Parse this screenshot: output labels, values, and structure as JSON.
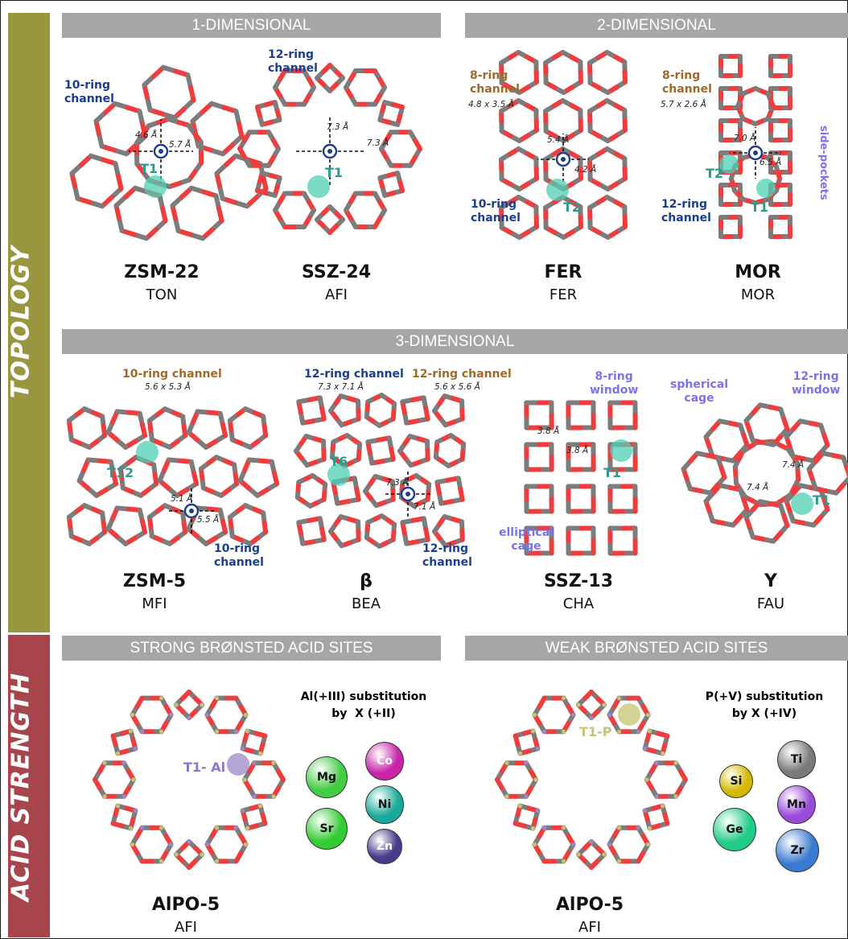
{
  "sidebar": {
    "topology": "TOPOLOGY",
    "acid_strength": "ACID STRENGTH"
  },
  "headers": {
    "one_d": "1-DIMENSIONAL",
    "two_d": "2-DIMENSIONAL",
    "three_d": "3-DIMENSIONAL",
    "strong": "STRONG BRØNSTED ACID SITES",
    "weak": "WEAK BRØNSTED ACID SITES"
  },
  "zeolites": {
    "zsm22": {
      "name": "ZSM-22",
      "code": "TON",
      "label": "10-ring\nchannel",
      "dim_a": "4.6 Å",
      "dim_b": "5.7 Å",
      "site": "T1"
    },
    "ssz24": {
      "name": "SSZ-24",
      "code": "AFI",
      "label": "12-ring\nchannel",
      "dim_a": "7.3 Å",
      "dim_b": "7.3 Å",
      "site": "T1"
    },
    "fer": {
      "name": "FER",
      "code": "FER",
      "label_8": "8-ring\nchannel",
      "dim_8": "4.8 x 3.5 Å",
      "label_10": "10-ring\nchannel",
      "dim_a": "5.4 Å",
      "dim_b": "4.2 Å",
      "site": "T2"
    },
    "mor": {
      "name": "MOR",
      "code": "MOR",
      "label_8": "8-ring\nchannel",
      "dim_8": "5.7 x 2.6 Å",
      "label_12": "12-ring\nchannel",
      "dim_a": "7.0 Å",
      "dim_b": "6.5 Å",
      "side": "side-pockets",
      "site_1": "T1",
      "site_2": "T2"
    },
    "zsm5": {
      "name": "ZSM-5",
      "code": "MFI",
      "label_top": "10-ring channel",
      "dim_top": "5.6 x 5.3 Å",
      "label_bot": "10-ring\nchannel",
      "dim_a": "5.1 Å",
      "dim_b": "5.5 Å",
      "site": "T12"
    },
    "beta": {
      "name": "β",
      "code": "BEA",
      "label_blue": "12-ring channel",
      "dim_blue": "7.3 x 7.1 Å",
      "label_brown": "12-ring channel",
      "dim_brown": "5.6 x 5.6 Å",
      "label_bot": "12-ring\nchannel",
      "dim_a": "7.3 Å",
      "dim_b": "7.1 Å",
      "site": "T6"
    },
    "ssz13": {
      "name": "SSZ-13",
      "code": "CHA",
      "window": "8-ring\nwindow",
      "cage": "elliptical\ncage",
      "dim_a": "3.8 Å",
      "dim_b": "3.8 Å",
      "site": "T1"
    },
    "y": {
      "name": "Y",
      "code": "FAU",
      "cage": "spherical\ncage",
      "window": "12-ring\nwindow",
      "dim_a": "7.4 Å",
      "dim_b": "7.4 Å",
      "site": "T1"
    }
  },
  "alpo_strong": {
    "name": "AlPO-5",
    "code": "AFI",
    "site": "T1- Al",
    "subst": "Al(+III) substitution\nby  X (+II)",
    "elements": [
      {
        "symbol": "Mg",
        "color": "#44cc44"
      },
      {
        "symbol": "Sr",
        "color": "#33cc33"
      },
      {
        "symbol": "Co",
        "color": "#c824a8"
      },
      {
        "symbol": "Ni",
        "color": "#1aaa9a"
      },
      {
        "symbol": "Zn",
        "color": "#4a3a8a"
      }
    ]
  },
  "alpo_weak": {
    "name": "AlPO-5",
    "code": "AFI",
    "site": "T1-P",
    "subst": "P(+V) substitution\nby X (+IV)",
    "elements": [
      {
        "symbol": "Si",
        "color": "#d4b800"
      },
      {
        "symbol": "Ge",
        "color": "#22cc88"
      },
      {
        "symbol": "Ti",
        "color": "#7a7a7a"
      },
      {
        "symbol": "Mn",
        "color": "#9a4ad8"
      },
      {
        "symbol": "Zr",
        "color": "#3a7ad0"
      }
    ]
  },
  "colors": {
    "oxygen": "#f03c3c",
    "bond": "#7c7c7c",
    "site": "#4ecfb4",
    "al": "#9a88c8",
    "p": "#c4c474"
  }
}
